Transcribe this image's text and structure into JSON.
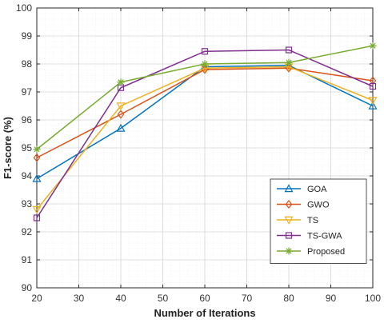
{
  "chart_data": {
    "type": "line",
    "xlabel": "Number of Iterations",
    "ylabel": "F1-score (%)",
    "xlim": [
      20,
      100
    ],
    "ylim": [
      90,
      100
    ],
    "x_ticks": [
      20,
      30,
      40,
      50,
      60,
      70,
      80,
      90,
      100
    ],
    "y_ticks": [
      90,
      91,
      92,
      93,
      94,
      95,
      96,
      97,
      98,
      99,
      100
    ],
    "grid": true,
    "minor_grid": true,
    "legend_position": "bottom-right",
    "x": [
      20,
      40,
      60,
      80,
      100
    ],
    "series": [
      {
        "name": "GOA",
        "color": "#0072BD",
        "marker": "triangle-up",
        "values": [
          93.9,
          95.7,
          97.9,
          97.95,
          96.5
        ]
      },
      {
        "name": "GWO",
        "color": "#D95319",
        "marker": "diamond",
        "values": [
          94.65,
          96.2,
          97.8,
          97.85,
          97.4
        ]
      },
      {
        "name": "TS",
        "color": "#EDB120",
        "marker": "triangle-down",
        "values": [
          92.8,
          96.5,
          97.85,
          97.9,
          96.7
        ]
      },
      {
        "name": "TS-GWA",
        "color": "#7E2F8E",
        "marker": "square",
        "values": [
          92.5,
          97.15,
          98.45,
          98.5,
          97.2
        ]
      },
      {
        "name": "Proposed",
        "color": "#77AC30",
        "marker": "asterisk",
        "values": [
          94.95,
          97.35,
          98.0,
          98.05,
          98.65
        ]
      }
    ]
  }
}
